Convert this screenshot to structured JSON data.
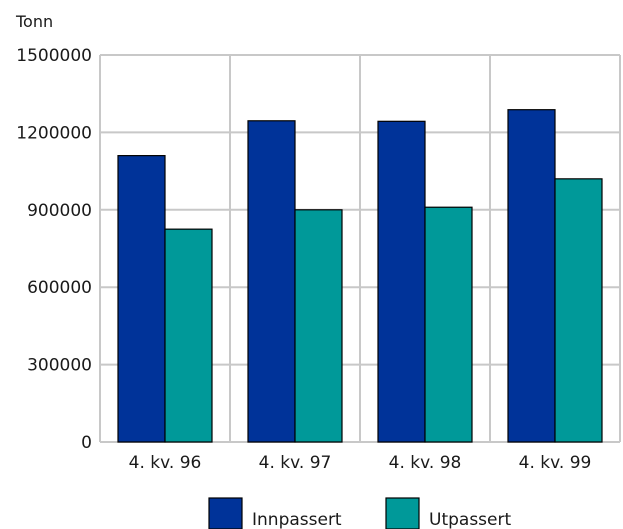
{
  "chart_data": {
    "type": "bar",
    "ylabel": "Tonn",
    "categories": [
      "4. kv. 96",
      "4. kv. 97",
      "4. kv. 98",
      "4. kv. 99"
    ],
    "series": [
      {
        "name": "Innpassert",
        "values": [
          1110000,
          1245000,
          1243000,
          1288000
        ]
      },
      {
        "name": "Utpassert",
        "values": [
          825000,
          900000,
          910000,
          1020000
        ]
      }
    ],
    "ylim": [
      0,
      1500000
    ],
    "yticks": [
      0,
      300000,
      600000,
      900000,
      1200000,
      1500000
    ],
    "grid": true,
    "legend_position": "bottom"
  },
  "colors": {
    "Innpassert": "#003399",
    "Utpassert": "#009999",
    "grid": "#c8c8c8"
  }
}
